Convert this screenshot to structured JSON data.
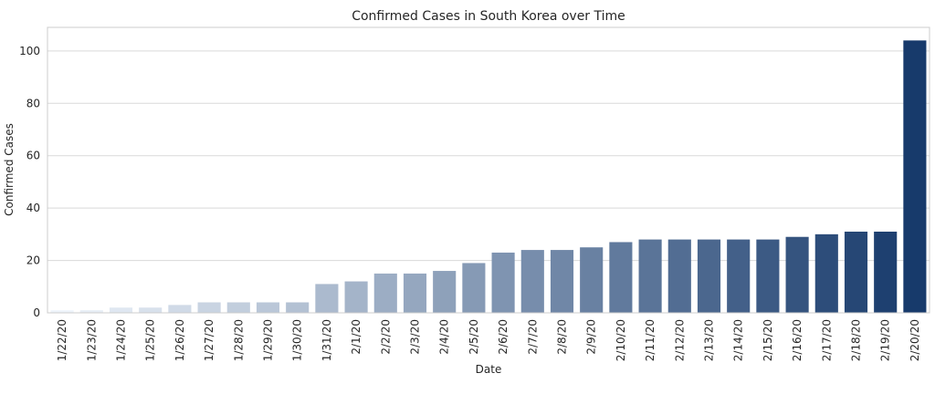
{
  "chart_data": {
    "type": "bar",
    "title": "Confirmed Cases in South Korea over Time",
    "xlabel": "Date",
    "ylabel": "Confirmed Cases",
    "categories": [
      "1/22/20",
      "1/23/20",
      "1/24/20",
      "1/25/20",
      "1/26/20",
      "1/27/20",
      "1/28/20",
      "1/29/20",
      "1/30/20",
      "1/31/20",
      "2/1/20",
      "2/2/20",
      "2/3/20",
      "2/4/20",
      "2/5/20",
      "2/6/20",
      "2/7/20",
      "2/8/20",
      "2/9/20",
      "2/10/20",
      "2/11/20",
      "2/12/20",
      "2/13/20",
      "2/14/20",
      "2/15/20",
      "2/16/20",
      "2/17/20",
      "2/18/20",
      "2/19/20",
      "2/20/20"
    ],
    "values": [
      1,
      1,
      2,
      2,
      3,
      4,
      4,
      4,
      4,
      11,
      12,
      15,
      15,
      16,
      19,
      23,
      24,
      24,
      25,
      27,
      28,
      28,
      28,
      28,
      28,
      29,
      30,
      31,
      31,
      104
    ],
    "ylim": [
      0,
      109
    ],
    "yticks": [
      0,
      20,
      40,
      60,
      80,
      100
    ],
    "grid": true,
    "palette": "Blues",
    "color_start": "#eef4fb",
    "color_end": "#173a6b"
  }
}
